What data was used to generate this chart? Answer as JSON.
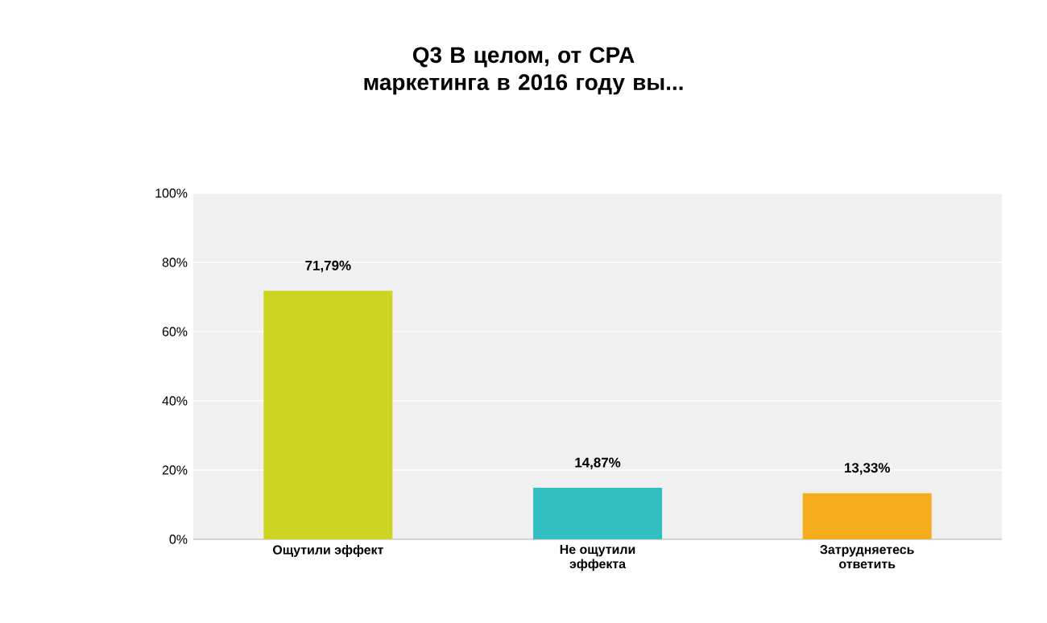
{
  "chart_data": {
    "type": "bar",
    "title": "Q3 В целом, от CPA маркетинга в 2016 году вы...",
    "categories": [
      "Ощутили эффект",
      "Не ощутили эффекта",
      "Затрудняетесь ответить"
    ],
    "values": [
      71.79,
      14.87,
      13.33
    ],
    "colors": [
      "#cdd424",
      "#33bfbf",
      "#f6ad1d"
    ],
    "value_labels": [
      "71,79%",
      "14,87%",
      "13,33%"
    ],
    "ylim": [
      0,
      100
    ],
    "yticks": [
      {
        "value": 0,
        "label": "0%"
      },
      {
        "value": 20,
        "label": "20%"
      },
      {
        "value": 40,
        "label": "40%"
      },
      {
        "value": 60,
        "label": "60%"
      },
      {
        "value": 80,
        "label": "80%"
      },
      {
        "value": 100,
        "label": "100%"
      }
    ],
    "grid": "y"
  }
}
